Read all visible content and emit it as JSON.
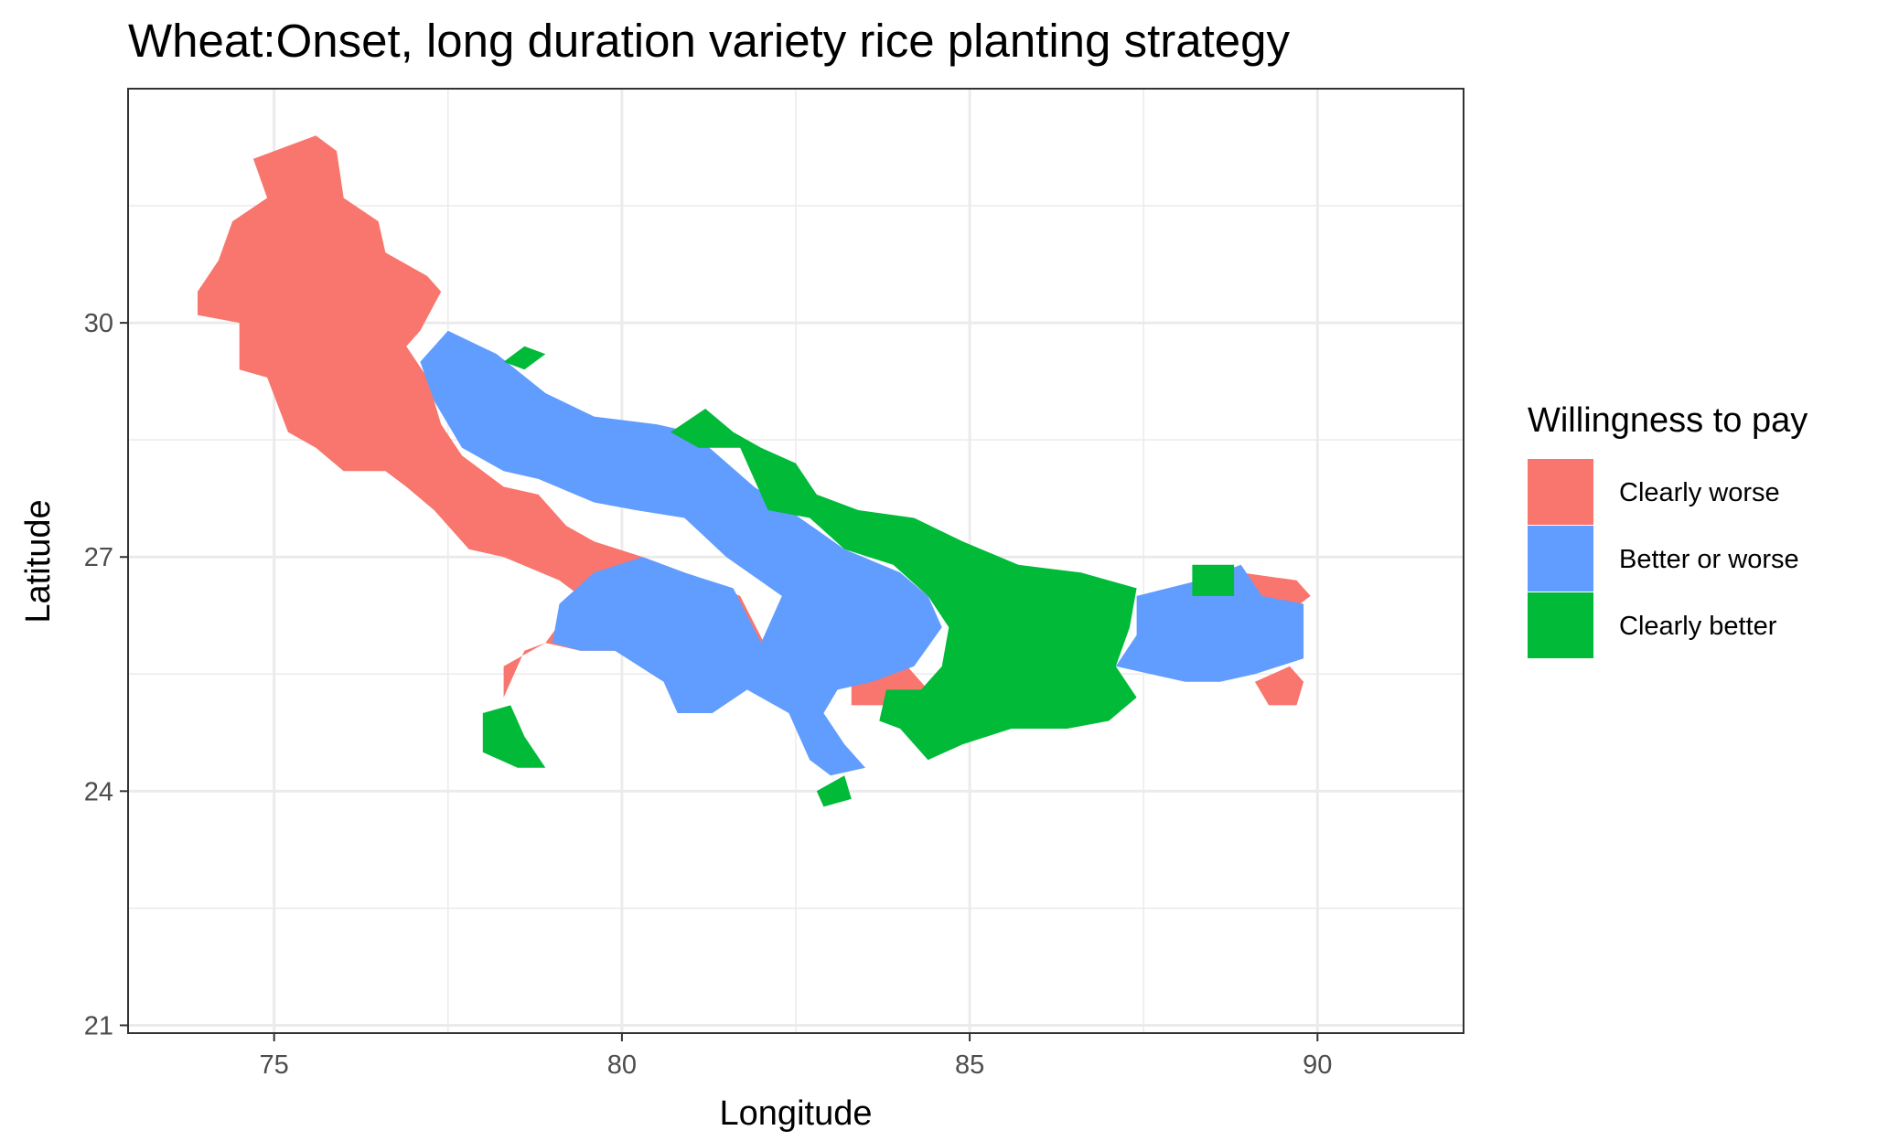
{
  "chart_data": {
    "type": "map",
    "title": "Wheat:Onset, long duration variety rice planting strategy",
    "xlabel": "Longitude",
    "ylabel": "Latitude",
    "xlim": [
      72.9,
      92.1
    ],
    "ylim": [
      20.9,
      33.0
    ],
    "x_ticks": [
      "75",
      "80",
      "85",
      "90"
    ],
    "y_ticks": [
      "21",
      "24",
      "27",
      "30"
    ],
    "grid": true,
    "legend": {
      "title": "Willingness to pay",
      "placement": "right",
      "entries": [
        {
          "label": "Clearly worse",
          "color": "#F8766D"
        },
        {
          "label": "Better or worse",
          "color": "#619CFF"
        },
        {
          "label": "Clearly better",
          "color": "#00BA38"
        }
      ]
    },
    "regions": [
      {
        "category": "Clearly worse",
        "color": "#F8766D",
        "polygons": [
          [
            [
              75.6,
              32.4
            ],
            [
              75.9,
              32.2
            ],
            [
              76.0,
              31.6
            ],
            [
              76.5,
              31.3
            ],
            [
              76.6,
              30.9
            ],
            [
              77.2,
              30.6
            ],
            [
              77.4,
              30.4
            ],
            [
              77.1,
              29.9
            ],
            [
              76.9,
              29.7
            ],
            [
              77.2,
              29.3
            ],
            [
              77.4,
              28.7
            ],
            [
              77.7,
              28.3
            ],
            [
              78.3,
              27.9
            ],
            [
              78.8,
              27.8
            ],
            [
              79.2,
              27.4
            ],
            [
              79.6,
              27.2
            ],
            [
              80.3,
              27.0
            ],
            [
              80.9,
              26.8
            ],
            [
              81.7,
              26.5
            ],
            [
              82.1,
              25.8
            ],
            [
              81.3,
              25.5
            ],
            [
              80.6,
              25.5
            ],
            [
              79.9,
              25.8
            ],
            [
              79.4,
              25.8
            ],
            [
              78.9,
              25.9
            ],
            [
              78.6,
              25.8
            ],
            [
              78.3,
              25.2
            ],
            [
              78.3,
              25.6
            ],
            [
              78.9,
              25.9
            ],
            [
              79.4,
              26.5
            ],
            [
              79.1,
              26.7
            ],
            [
              78.3,
              27.0
            ],
            [
              77.8,
              27.1
            ],
            [
              77.3,
              27.6
            ],
            [
              76.9,
              27.9
            ],
            [
              76.6,
              28.1
            ],
            [
              76.0,
              28.1
            ],
            [
              75.6,
              28.4
            ],
            [
              75.2,
              28.6
            ],
            [
              74.9,
              29.3
            ],
            [
              74.5,
              29.4
            ],
            [
              74.5,
              30.0
            ],
            [
              73.9,
              30.1
            ],
            [
              73.9,
              30.4
            ],
            [
              74.2,
              30.8
            ],
            [
              74.4,
              31.3
            ],
            [
              74.9,
              31.6
            ],
            [
              74.7,
              32.1
            ],
            [
              75.3,
              32.3
            ]
          ],
          [
            [
              83.3,
              25.4
            ],
            [
              84.1,
              25.6
            ],
            [
              84.4,
              25.3
            ],
            [
              84.0,
              25.1
            ],
            [
              83.6,
              25.1
            ],
            [
              83.3,
              25.1
            ]
          ],
          [
            [
              88.9,
              26.8
            ],
            [
              89.7,
              26.7
            ],
            [
              89.9,
              26.5
            ],
            [
              89.6,
              26.3
            ],
            [
              89.2,
              26.4
            ]
          ],
          [
            [
              89.1,
              25.4
            ],
            [
              89.6,
              25.6
            ],
            [
              89.8,
              25.4
            ],
            [
              89.7,
              25.1
            ],
            [
              89.3,
              25.1
            ]
          ]
        ]
      },
      {
        "category": "Better or worse",
        "color": "#619CFF",
        "polygons": [
          [
            [
              77.5,
              29.9
            ],
            [
              78.2,
              29.6
            ],
            [
              78.9,
              29.1
            ],
            [
              79.6,
              28.8
            ],
            [
              80.5,
              28.7
            ],
            [
              81.0,
              28.6
            ],
            [
              81.9,
              27.9
            ],
            [
              82.4,
              27.6
            ],
            [
              83.2,
              27.1
            ],
            [
              84.0,
              26.8
            ],
            [
              84.4,
              26.5
            ],
            [
              84.6,
              26.1
            ],
            [
              84.2,
              25.6
            ],
            [
              83.6,
              25.4
            ],
            [
              83.1,
              25.3
            ],
            [
              82.9,
              25.0
            ],
            [
              83.2,
              24.6
            ],
            [
              83.5,
              24.3
            ],
            [
              83.0,
              24.2
            ],
            [
              82.7,
              24.4
            ],
            [
              82.4,
              25.0
            ],
            [
              81.8,
              25.3
            ],
            [
              81.3,
              25.0
            ],
            [
              80.8,
              25.0
            ],
            [
              80.6,
              25.4
            ],
            [
              79.9,
              25.8
            ],
            [
              79.4,
              25.8
            ],
            [
              79.0,
              25.9
            ],
            [
              79.1,
              26.4
            ],
            [
              79.6,
              26.8
            ],
            [
              80.3,
              27.0
            ],
            [
              80.9,
              26.8
            ],
            [
              81.6,
              26.6
            ],
            [
              82.0,
              25.9
            ],
            [
              82.3,
              26.5
            ],
            [
              81.5,
              27.0
            ],
            [
              80.9,
              27.5
            ],
            [
              80.2,
              27.6
            ],
            [
              79.6,
              27.7
            ],
            [
              78.8,
              28.0
            ],
            [
              78.3,
              28.1
            ],
            [
              77.7,
              28.4
            ],
            [
              77.3,
              29.0
            ],
            [
              77.1,
              29.5
            ]
          ],
          [
            [
              87.4,
              26.5
            ],
            [
              88.3,
              26.7
            ],
            [
              88.9,
              26.9
            ],
            [
              89.2,
              26.5
            ],
            [
              89.8,
              26.4
            ],
            [
              89.8,
              25.7
            ],
            [
              89.1,
              25.5
            ],
            [
              88.6,
              25.4
            ],
            [
              88.1,
              25.4
            ],
            [
              87.6,
              25.5
            ],
            [
              87.1,
              25.6
            ],
            [
              87.4,
              26.0
            ]
          ]
        ]
      },
      {
        "category": "Clearly better",
        "color": "#00BA38",
        "polygons": [
          [
            [
              81.2,
              28.9
            ],
            [
              81.6,
              28.6
            ],
            [
              82.0,
              28.4
            ],
            [
              82.5,
              28.2
            ],
            [
              82.8,
              27.8
            ],
            [
              83.4,
              27.6
            ],
            [
              84.2,
              27.5
            ],
            [
              84.9,
              27.2
            ],
            [
              85.7,
              26.9
            ],
            [
              86.6,
              26.8
            ],
            [
              87.4,
              26.6
            ],
            [
              87.3,
              26.1
            ],
            [
              87.1,
              25.6
            ],
            [
              87.4,
              25.2
            ],
            [
              87.0,
              24.9
            ],
            [
              86.4,
              24.8
            ],
            [
              85.6,
              24.8
            ],
            [
              84.9,
              24.6
            ],
            [
              84.4,
              24.4
            ],
            [
              84.0,
              24.8
            ],
            [
              83.7,
              24.9
            ],
            [
              83.8,
              25.3
            ],
            [
              84.3,
              25.3
            ],
            [
              84.6,
              25.6
            ],
            [
              84.7,
              26.1
            ],
            [
              84.4,
              26.5
            ],
            [
              83.9,
              26.9
            ],
            [
              83.2,
              27.1
            ],
            [
              82.7,
              27.5
            ],
            [
              82.1,
              27.6
            ],
            [
              81.9,
              28.0
            ],
            [
              81.7,
              28.4
            ],
            [
              81.1,
              28.4
            ],
            [
              80.7,
              28.6
            ]
          ],
          [
            [
              78.0,
              25.0
            ],
            [
              78.4,
              25.1
            ],
            [
              78.6,
              24.7
            ],
            [
              78.9,
              24.3
            ],
            [
              78.5,
              24.3
            ],
            [
              78.0,
              24.5
            ]
          ],
          [
            [
              82.8,
              24.0
            ],
            [
              83.2,
              24.2
            ],
            [
              83.3,
              23.9
            ],
            [
              82.9,
              23.8
            ]
          ],
          [
            [
              88.2,
              26.9
            ],
            [
              88.8,
              26.9
            ],
            [
              88.8,
              26.5
            ],
            [
              88.2,
              26.5
            ]
          ],
          [
            [
              78.3,
              29.5
            ],
            [
              78.6,
              29.7
            ],
            [
              78.9,
              29.6
            ],
            [
              78.6,
              29.4
            ]
          ]
        ]
      }
    ]
  }
}
